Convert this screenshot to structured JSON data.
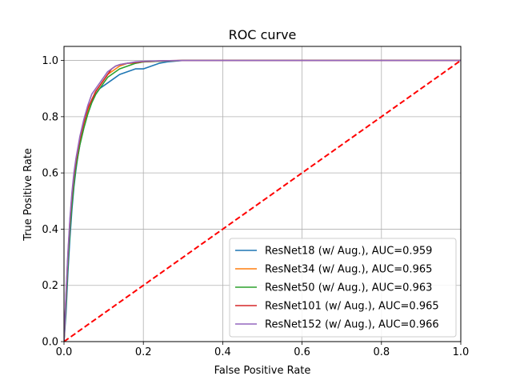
{
  "chart_data": {
    "type": "line",
    "title": "ROC curve",
    "xlabel": "False Positive Rate",
    "ylabel": "True Positive Rate",
    "xlim": [
      0,
      1
    ],
    "ylim": [
      0,
      1.05
    ],
    "xticks": [
      "0.0",
      "0.2",
      "0.4",
      "0.6",
      "0.8",
      "1.0"
    ],
    "yticks": [
      "0.0",
      "0.2",
      "0.4",
      "0.6",
      "0.8",
      "1.0"
    ],
    "grid": true,
    "legend_position": "lower-right",
    "series": [
      {
        "name": "ResNet18 (w/ Aug.), AUC=0.959",
        "color": "#1f77b4",
        "x": [
          0,
          0.005,
          0.01,
          0.015,
          0.02,
          0.025,
          0.03,
          0.035,
          0.04,
          0.05,
          0.06,
          0.07,
          0.08,
          0.09,
          0.1,
          0.11,
          0.12,
          0.13,
          0.14,
          0.15,
          0.16,
          0.18,
          0.2,
          0.22,
          0.24,
          0.26,
          0.3,
          0.4,
          0.6,
          0.8,
          1.0
        ],
        "y": [
          0,
          0.1,
          0.25,
          0.37,
          0.47,
          0.55,
          0.61,
          0.66,
          0.7,
          0.76,
          0.81,
          0.85,
          0.88,
          0.9,
          0.91,
          0.92,
          0.93,
          0.94,
          0.95,
          0.955,
          0.96,
          0.97,
          0.97,
          0.98,
          0.99,
          0.995,
          1.0,
          1.0,
          1.0,
          1.0,
          1.0
        ]
      },
      {
        "name": "ResNet34 (w/ Aug.), AUC=0.965",
        "color": "#ff7f0e",
        "x": [
          0,
          0.005,
          0.01,
          0.015,
          0.02,
          0.025,
          0.03,
          0.035,
          0.04,
          0.05,
          0.06,
          0.07,
          0.08,
          0.09,
          0.1,
          0.11,
          0.12,
          0.13,
          0.14,
          0.16,
          0.18,
          0.2,
          0.25,
          0.3,
          0.4,
          0.6,
          0.8,
          1.0
        ],
        "y": [
          0,
          0.15,
          0.3,
          0.42,
          0.51,
          0.58,
          0.63,
          0.67,
          0.71,
          0.77,
          0.82,
          0.86,
          0.89,
          0.91,
          0.93,
          0.95,
          0.96,
          0.97,
          0.98,
          0.99,
          0.99,
          0.995,
          0.998,
          1.0,
          1.0,
          1.0,
          1.0,
          1.0
        ]
      },
      {
        "name": "ResNet50 (w/ Aug.), AUC=0.963",
        "color": "#2ca02c",
        "x": [
          0,
          0.005,
          0.01,
          0.015,
          0.02,
          0.025,
          0.03,
          0.035,
          0.04,
          0.05,
          0.06,
          0.07,
          0.08,
          0.09,
          0.1,
          0.11,
          0.12,
          0.13,
          0.14,
          0.16,
          0.18,
          0.2,
          0.25,
          0.3,
          0.4,
          0.6,
          0.8,
          1.0
        ],
        "y": [
          0,
          0.13,
          0.28,
          0.4,
          0.49,
          0.56,
          0.62,
          0.66,
          0.7,
          0.76,
          0.81,
          0.85,
          0.88,
          0.9,
          0.92,
          0.94,
          0.95,
          0.96,
          0.97,
          0.98,
          0.99,
          0.995,
          0.998,
          1.0,
          1.0,
          1.0,
          1.0,
          1.0
        ]
      },
      {
        "name": "ResNet101 (w/ Aug.), AUC=0.965",
        "color": "#d62728",
        "x": [
          0,
          0.005,
          0.01,
          0.015,
          0.02,
          0.025,
          0.03,
          0.035,
          0.04,
          0.05,
          0.06,
          0.07,
          0.08,
          0.09,
          0.1,
          0.11,
          0.12,
          0.13,
          0.14,
          0.16,
          0.18,
          0.2,
          0.25,
          0.3,
          0.4,
          0.6,
          0.8,
          1.0
        ],
        "y": [
          0,
          0.16,
          0.31,
          0.43,
          0.52,
          0.59,
          0.64,
          0.68,
          0.72,
          0.78,
          0.83,
          0.86,
          0.89,
          0.91,
          0.93,
          0.95,
          0.97,
          0.98,
          0.985,
          0.99,
          0.993,
          0.996,
          0.999,
          1.0,
          1.0,
          1.0,
          1.0,
          1.0
        ]
      },
      {
        "name": "ResNet152 (w/ Aug.), AUC=0.966",
        "color": "#9467bd",
        "x": [
          0,
          0.005,
          0.01,
          0.015,
          0.02,
          0.025,
          0.03,
          0.035,
          0.04,
          0.05,
          0.06,
          0.07,
          0.08,
          0.09,
          0.1,
          0.11,
          0.12,
          0.13,
          0.14,
          0.16,
          0.18,
          0.2,
          0.25,
          0.3,
          0.4,
          0.6,
          0.8,
          1.0
        ],
        "y": [
          0,
          0.17,
          0.32,
          0.44,
          0.53,
          0.6,
          0.65,
          0.69,
          0.73,
          0.79,
          0.84,
          0.88,
          0.9,
          0.92,
          0.94,
          0.96,
          0.97,
          0.98,
          0.985,
          0.99,
          0.995,
          0.997,
          0.999,
          1.0,
          1.0,
          1.0,
          1.0,
          1.0
        ]
      }
    ],
    "reference_line": {
      "x": [
        0,
        1
      ],
      "y": [
        0,
        1
      ],
      "color": "#ff0000",
      "style": "dashed"
    }
  }
}
